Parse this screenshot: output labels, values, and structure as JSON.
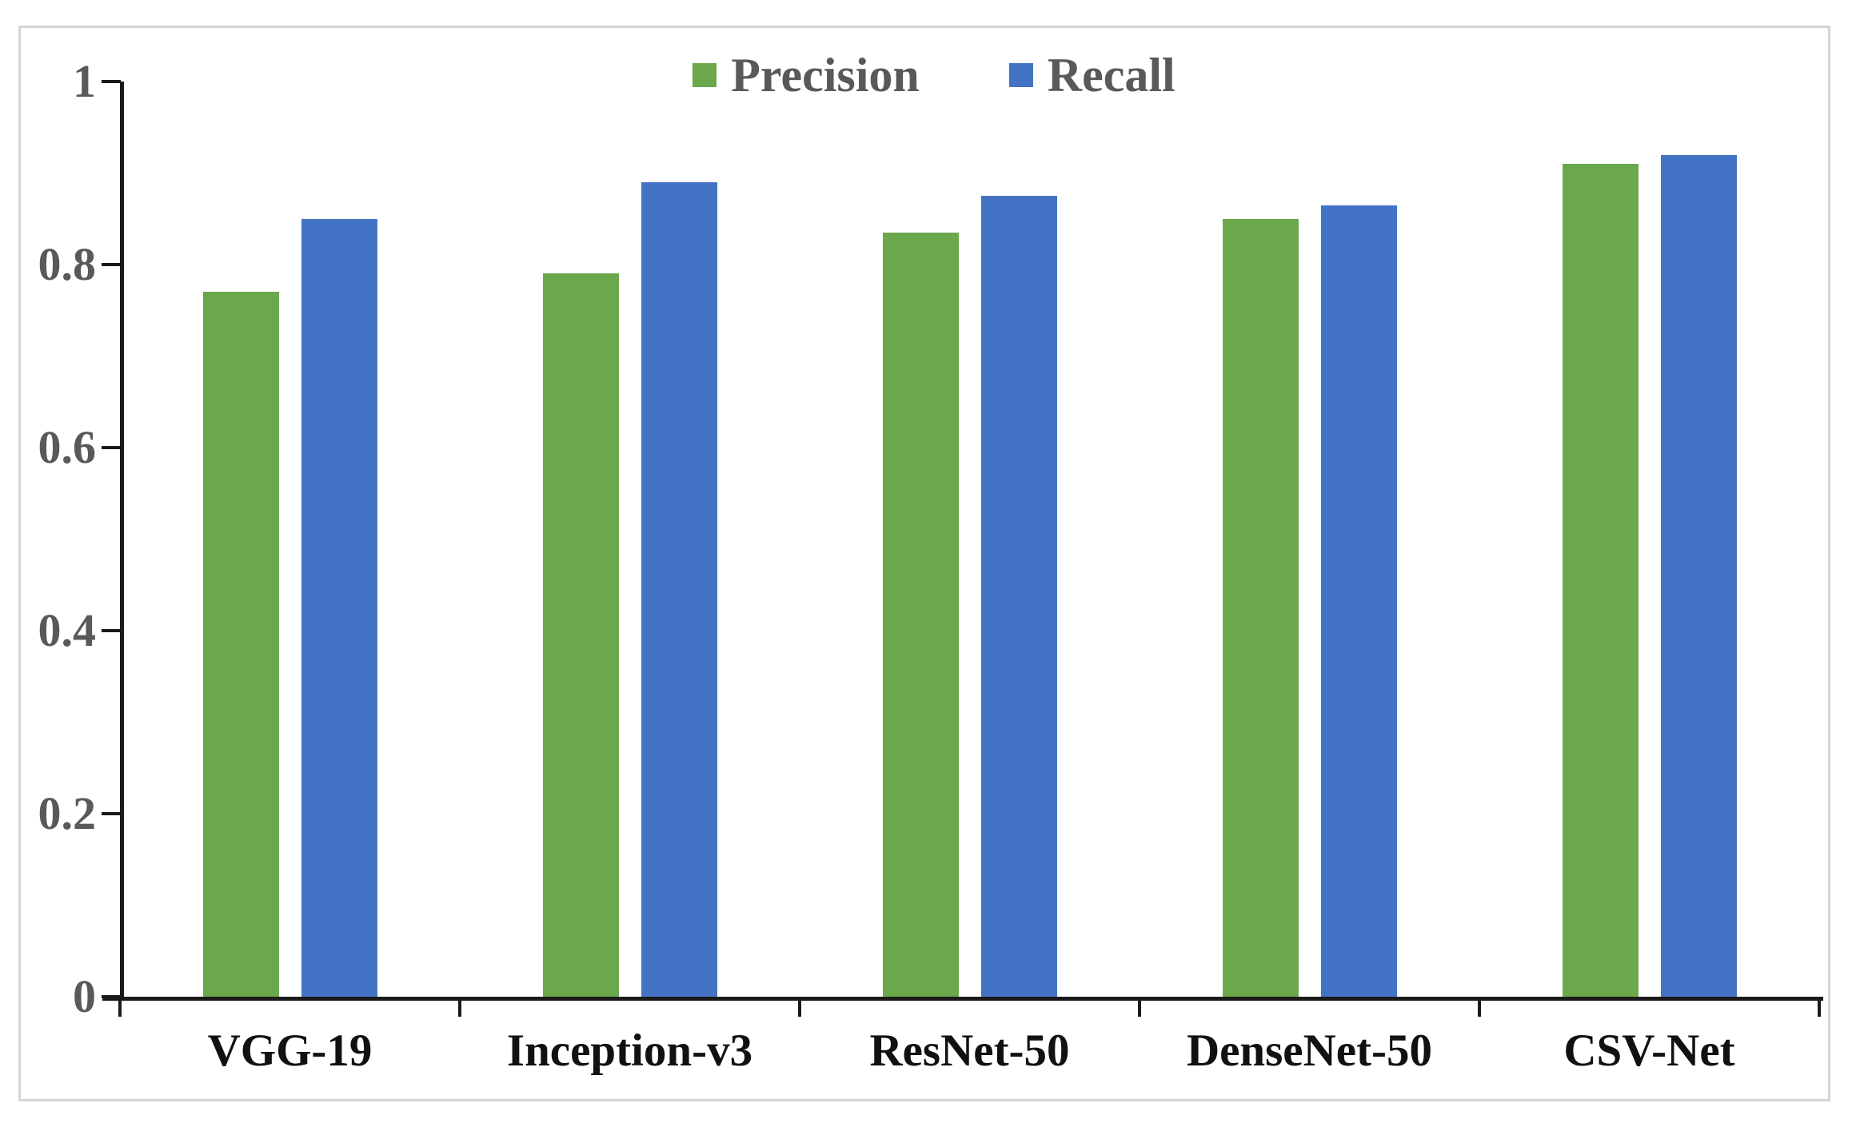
{
  "figure": {
    "description": "Grouped bar chart comparing Precision and Recall of five CNN models",
    "background_color": "#ffffff",
    "frame_border_color": "#d5d5d5"
  },
  "chart_data": {
    "type": "bar",
    "title": "",
    "xlabel": "",
    "ylabel": "",
    "categories": [
      "VGG-19",
      "Inception-v3",
      "ResNet-50",
      "DenseNet-50",
      "CSV-Net"
    ],
    "series": [
      {
        "name": "Precision",
        "color": "#6BA84C",
        "values": [
          0.77,
          0.79,
          0.835,
          0.85,
          0.91
        ]
      },
      {
        "name": "Recall",
        "color": "#4473C6",
        "values": [
          0.85,
          0.89,
          0.875,
          0.865,
          0.92
        ]
      }
    ],
    "ylim": [
      0,
      1
    ],
    "y_ticks": [
      0,
      0.2,
      0.4,
      0.6,
      0.8,
      1
    ],
    "y_tick_labels": [
      "0",
      "0.2",
      "0.4",
      "0.6",
      "0.8",
      "1"
    ],
    "grid": false,
    "legend_position": "top-center",
    "axis_color": "#1a1a1a",
    "y_tick_label_color": "#595959",
    "category_label_color": "#111111"
  }
}
